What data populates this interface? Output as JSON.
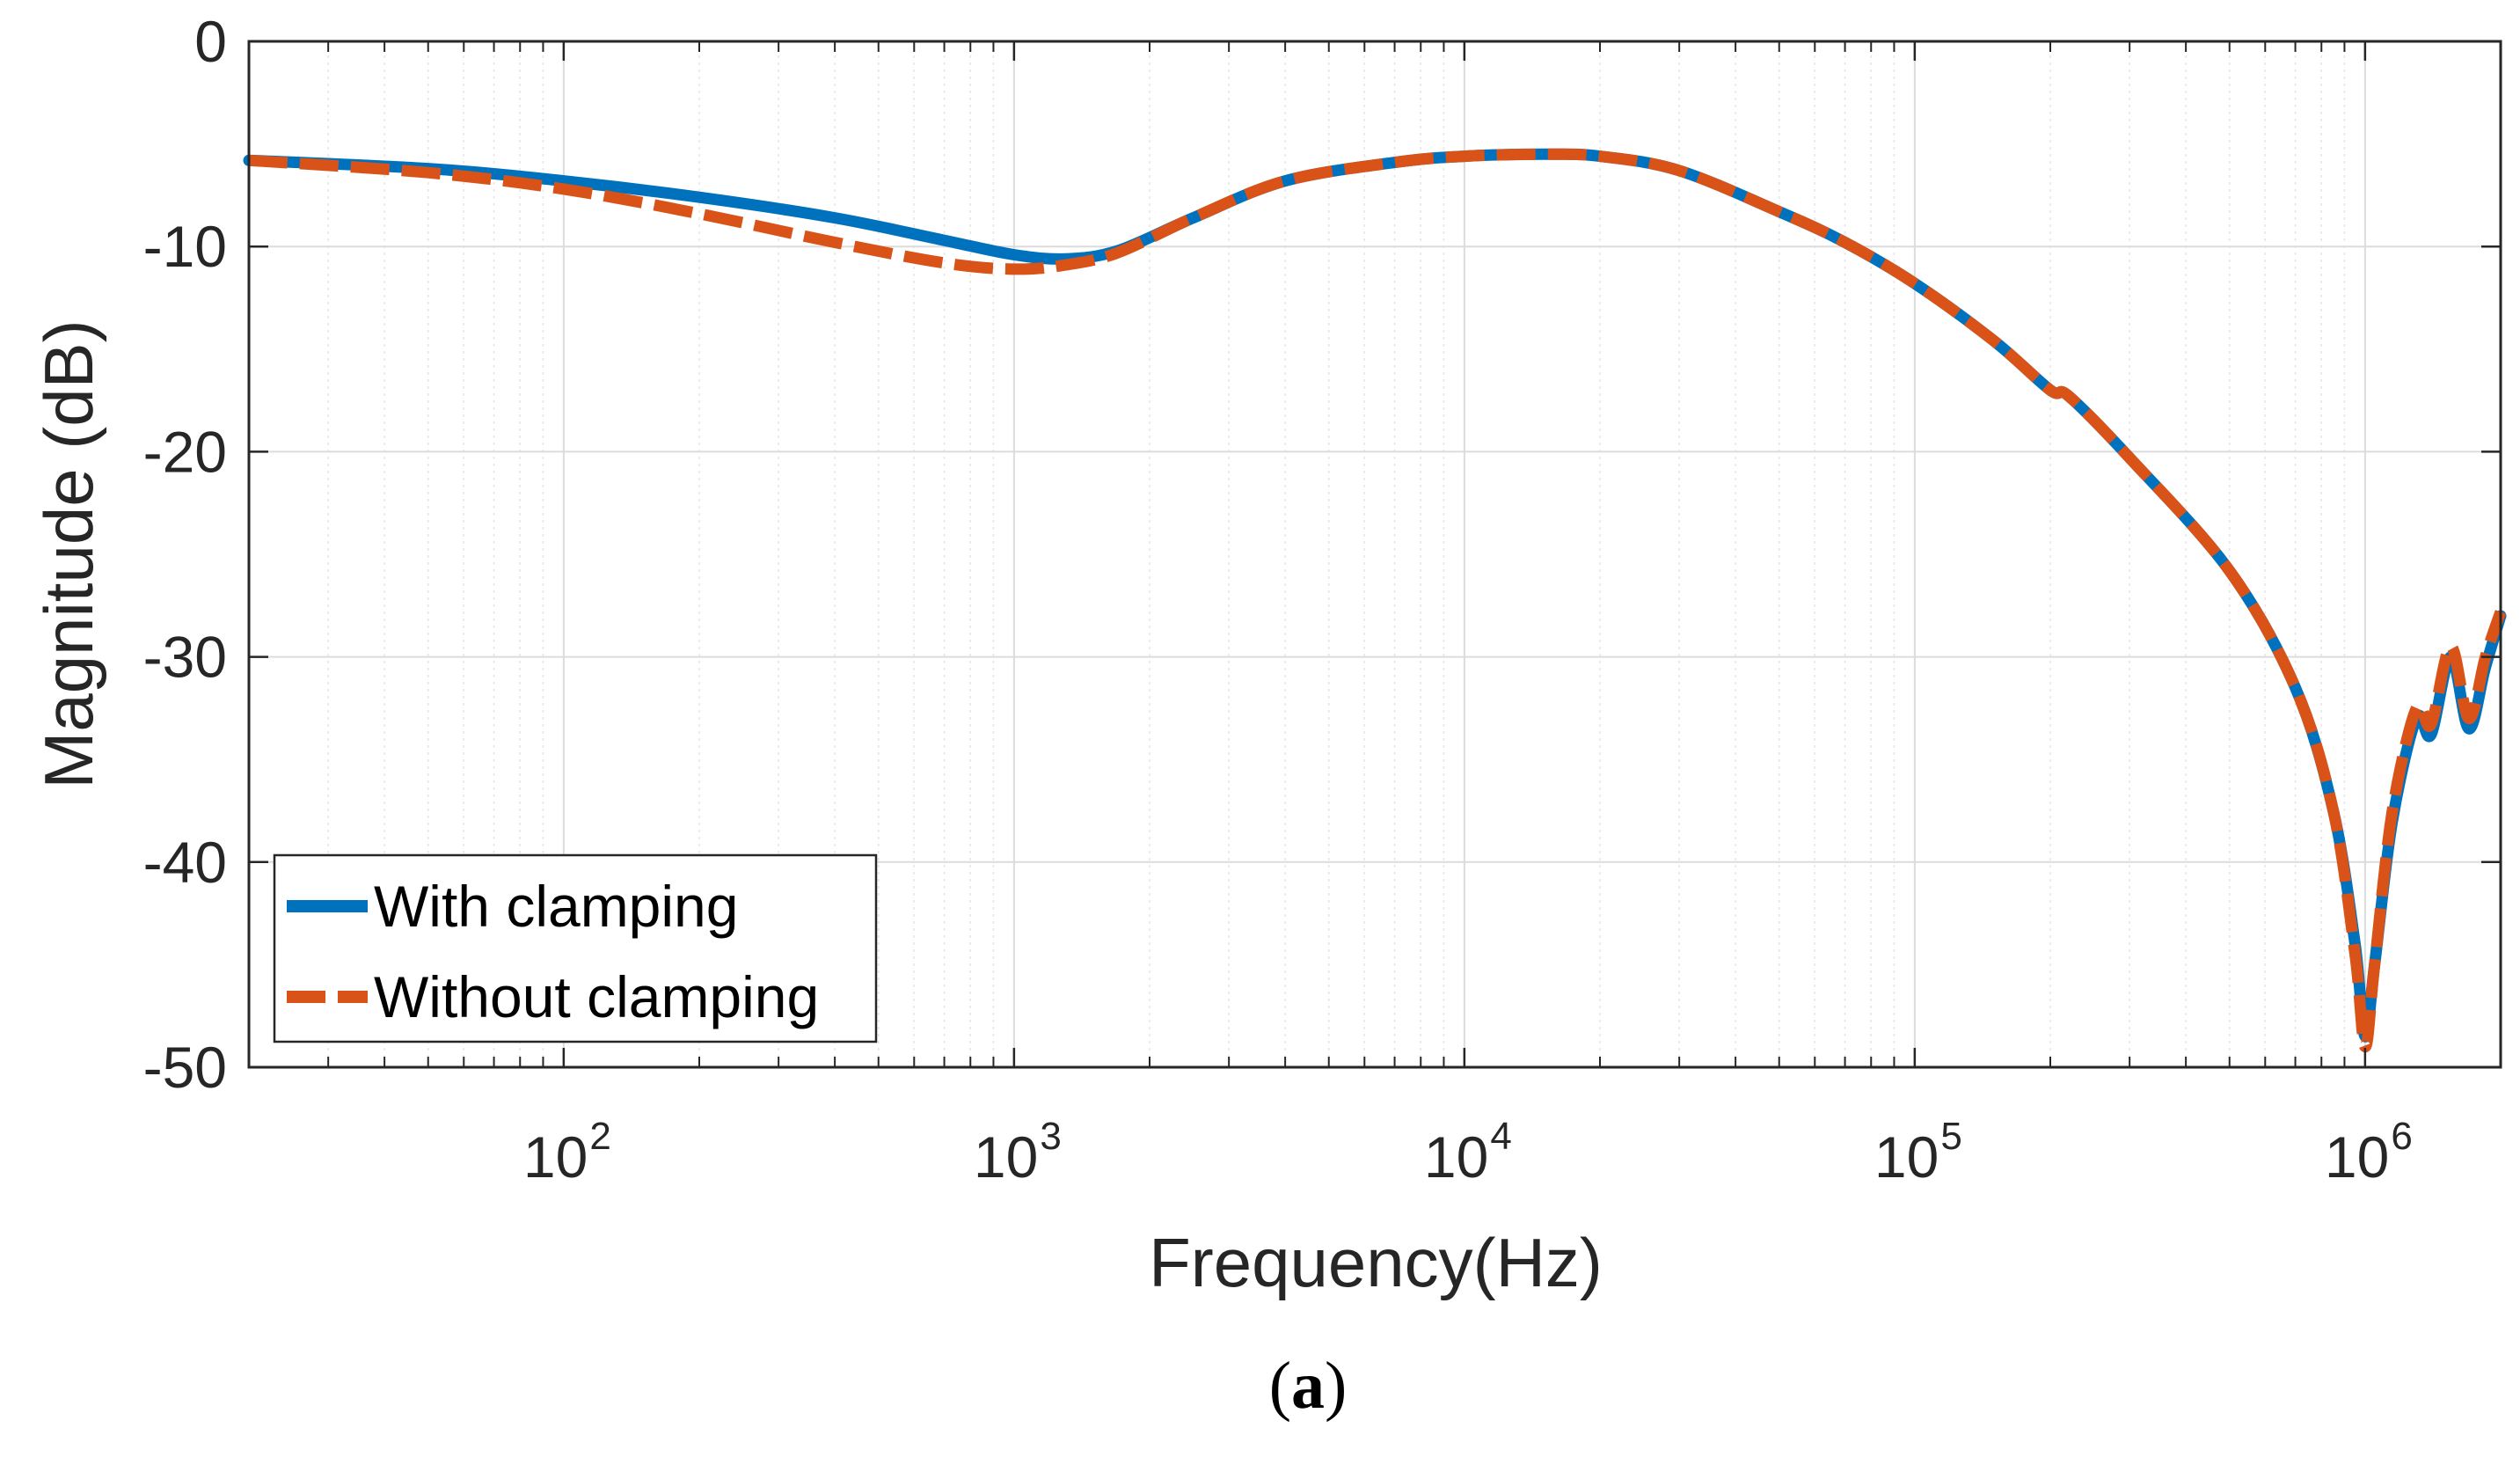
{
  "chart_data": {
    "type": "line",
    "title": "",
    "xlabel": "Frequency(Hz)",
    "ylabel": "Magnitude (dB)",
    "xscale": "log",
    "xlim": [
      20,
      2000000
    ],
    "ylim": [
      -50,
      0
    ],
    "grid": true,
    "legend_position": "bottom-left",
    "x_tick_labels": [
      {
        "base": "10",
        "exp": "2",
        "value": 100
      },
      {
        "base": "10",
        "exp": "3",
        "value": 1000
      },
      {
        "base": "10",
        "exp": "4",
        "value": 10000
      },
      {
        "base": "10",
        "exp": "5",
        "value": 100000
      },
      {
        "base": "10",
        "exp": "6",
        "value": 1000000
      }
    ],
    "y_ticks": [
      0,
      -10,
      -20,
      -30,
      -40,
      -50
    ],
    "y_tick_labels": [
      "0",
      "-10",
      "-20",
      "-30",
      "-40",
      "-50"
    ],
    "series": [
      {
        "name": "With clamping",
        "color": "#0072BD",
        "style": "solid",
        "x": [
          20,
          50,
          100,
          200,
          400,
          700,
          1000,
          1300,
          1700,
          2500,
          4000,
          7000,
          10000,
          15000,
          20000,
          30000,
          50000,
          70000,
          100000,
          150000,
          200000,
          220000,
          300000,
          500000,
          700000,
          850000,
          950000,
          1000000,
          1050000,
          1150000,
          1300000,
          1400000,
          1550000,
          1700000,
          1850000,
          2000000
        ],
        "values": [
          -5.8,
          -6.2,
          -6.8,
          -7.6,
          -8.6,
          -9.7,
          -10.4,
          -10.6,
          -10.2,
          -8.6,
          -6.8,
          -5.9,
          -5.6,
          -5.5,
          -5.6,
          -6.3,
          -8.3,
          -9.8,
          -11.8,
          -14.6,
          -17.0,
          -17.3,
          -20.3,
          -25.8,
          -31.5,
          -37.5,
          -44.0,
          -48.5,
          -45.0,
          -38.0,
          -33.0,
          -33.8,
          -30.0,
          -33.5,
          -30.5,
          -28.0
        ]
      },
      {
        "name": "Without clamping",
        "color": "#D95319",
        "style": "dashed",
        "x": [
          20,
          50,
          100,
          200,
          400,
          700,
          1000,
          1300,
          1700,
          2500,
          4000,
          7000,
          10000,
          15000,
          20000,
          30000,
          50000,
          70000,
          100000,
          150000,
          200000,
          220000,
          300000,
          500000,
          700000,
          850000,
          950000,
          1000000,
          1050000,
          1150000,
          1300000,
          1400000,
          1550000,
          1700000,
          1850000,
          2000000
        ],
        "values": [
          -5.8,
          -6.4,
          -7.2,
          -8.4,
          -9.8,
          -10.8,
          -11.1,
          -10.9,
          -10.3,
          -8.6,
          -6.8,
          -5.9,
          -5.6,
          -5.5,
          -5.6,
          -6.3,
          -8.3,
          -9.8,
          -11.8,
          -14.6,
          -17.0,
          -17.3,
          -20.3,
          -25.8,
          -31.5,
          -37.5,
          -44.5,
          -49.0,
          -45.0,
          -37.5,
          -32.5,
          -33.3,
          -29.5,
          -33.0,
          -30.0,
          -27.8
        ]
      }
    ]
  },
  "caption": {
    "open": "(",
    "letter": "a",
    "close": ")"
  }
}
